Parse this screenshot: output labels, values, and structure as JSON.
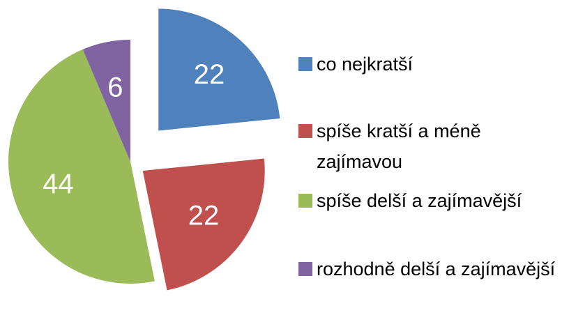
{
  "chart_data": {
    "type": "pie",
    "categories": [
      "co nejkratší",
      "spíše kratší a méně zajímavou",
      "spíše delší a zajímavější",
      "rozhodně delší a zajímavější"
    ],
    "values": [
      22,
      22,
      44,
      6
    ],
    "colors": [
      "#4f81bd",
      "#c0504d",
      "#9bbb59",
      "#8064a2"
    ],
    "legend": "right"
  }
}
